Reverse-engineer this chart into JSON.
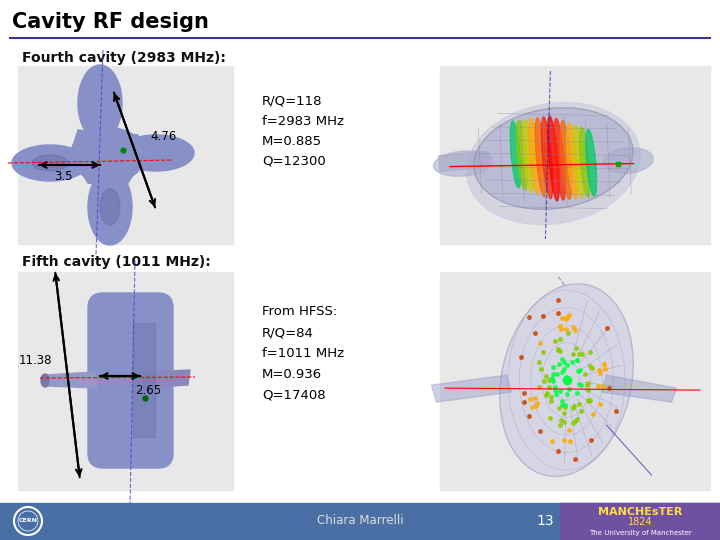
{
  "title": "Cavity RF design",
  "section1_title": "Fourth cavity (2983 MHz):",
  "section2_title": "Fifth cavity (1011 MHz):",
  "cavity1_params": "R/Q=118\nf=2983 MHz\nM=0.885\nQ=12300",
  "cavity1_dim1": "4.76",
  "cavity1_dim2": "3.5",
  "cavity2_params": "From HFSS:\nR/Q=84\nf=1011 MHz\nM=0.936\nQ=17408",
  "cavity2_dim1": "11.38",
  "cavity2_dim2": "2.65",
  "footer_text": "Chiara Marrelli",
  "footer_page": "13",
  "body_color": "#8890c8",
  "body_color_dark": "#6870a8",
  "bg_box_color": "#e8e8e8",
  "slide_bg": "#ffffff",
  "title_color": "#000000",
  "header_line_color": "#3333aa",
  "footer_bg": "#4a6fa5",
  "footer_right_bg": "#7050a0"
}
